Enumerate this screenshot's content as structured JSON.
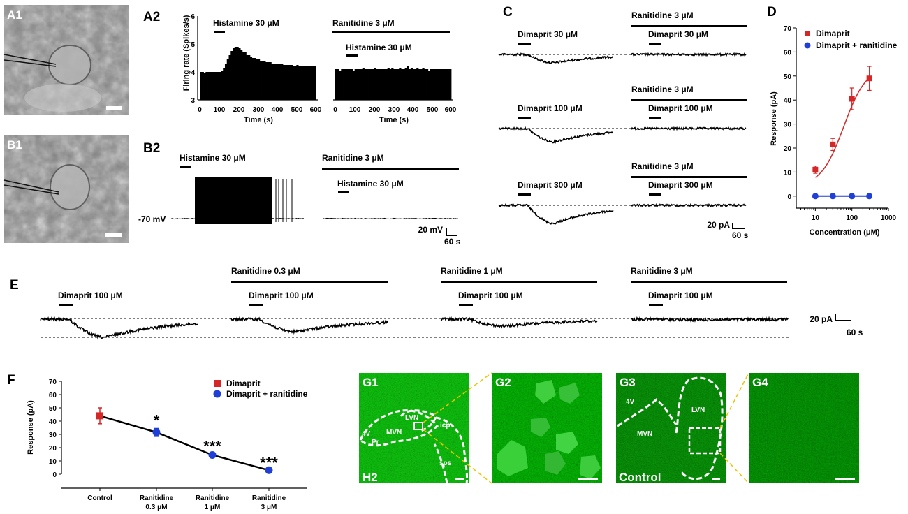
{
  "panels": {
    "A1": "A1",
    "A2": "A2",
    "B1": "B1",
    "B2": "B2",
    "C": "C",
    "D": "D",
    "E": "E",
    "F": "F",
    "G1": "G1",
    "G2": "G2",
    "G3": "G3",
    "G4": "G4"
  },
  "a2": {
    "ylabel": "Firing rate (Spikes/s)",
    "xlabel": "Time (s)",
    "yticks": [
      "3",
      "4",
      "5",
      "6"
    ],
    "xticks": [
      "0",
      "100",
      "200",
      "300",
      "400",
      "500",
      "600"
    ],
    "left_label": "Histamine 30 μM",
    "right_top_label": "Ranitidine 3 μM",
    "right_label": "Histamine 30 μM"
  },
  "b2": {
    "left_label": "Histamine 30 μM",
    "right_top_label": "Ranitidine 3 μM",
    "right_label": "Histamine 30 μM",
    "vm_label": "-70 mV",
    "scale_v": "20 mV",
    "scale_t": "60 s"
  },
  "c": {
    "rows": [
      {
        "agonist": "Dimaprit 30 μM",
        "antagonist": "Ranitidine 3 μM",
        "agonist2": "Dimaprit 30 μM"
      },
      {
        "agonist": "Dimaprit 100 μM",
        "antagonist": "Ranitidine 3 μM",
        "agonist2": "Dimaprit 100 μM"
      },
      {
        "agonist": "Dimaprit 300 μM",
        "antagonist": "Ranitidine 3 μM",
        "agonist2": "Dimaprit 300 μM"
      }
    ],
    "scale_a": "20 pA",
    "scale_t": "60 s"
  },
  "e": {
    "blocks": [
      {
        "top": "",
        "label": "Dimaprit 100 μM"
      },
      {
        "top": "Ranitidine 0.3 μM",
        "label": "Dimaprit 100 μM"
      },
      {
        "top": "Ranitidine 1 μM",
        "label": "Dimaprit 100 μM"
      },
      {
        "top": "Ranitidine 3 μM",
        "label": "Dimaprit 100 μM"
      }
    ],
    "scale_a": "20 pA",
    "scale_t": "60 s"
  },
  "g": {
    "g1_labels": [
      "4V",
      "Pr",
      "MVN",
      "LVN",
      "icp",
      "sps"
    ],
    "g1_corner": "H2",
    "g3_labels": [
      "4V",
      "MVN",
      "LVN"
    ],
    "g3_corner": "Control"
  },
  "colors": {
    "dimaprit": "#d62728",
    "ranitidine": "#1f3fd6",
    "micro_green": "#2f8a2f",
    "zoom_line": "#f2c200"
  },
  "chart_data": [
    {
      "panel": "A2",
      "type": "bar",
      "xlabel": "Time (s)",
      "ylabel": "Firing rate (Spikes/s)",
      "ylim": [
        3,
        6
      ],
      "xlim": [
        0,
        600
      ],
      "series": [
        {
          "name": "Histamine 30 μM",
          "bin_s": 10,
          "values": [
            4.0,
            4.0,
            3.95,
            4.0,
            4.0,
            4.0,
            4.0,
            4.0,
            4.0,
            4.0,
            4.0,
            4.05,
            4.15,
            4.3,
            4.45,
            4.6,
            4.75,
            4.85,
            4.9,
            4.9,
            4.85,
            4.8,
            4.7,
            4.7,
            4.6,
            4.6,
            4.55,
            4.5,
            4.5,
            4.45,
            4.45,
            4.4,
            4.4,
            4.4,
            4.35,
            4.35,
            4.35,
            4.3,
            4.3,
            4.3,
            4.3,
            4.3,
            4.3,
            4.25,
            4.25,
            4.25,
            4.25,
            4.25,
            4.2,
            4.2,
            4.25,
            4.2,
            4.2,
            4.2,
            4.2,
            4.2,
            4.2,
            4.2,
            4.2,
            4.2
          ]
        },
        {
          "name": "Ranitidine 3 μM + Histamine 30 μM",
          "bin_s": 10,
          "values": [
            4.1,
            4.1,
            4.05,
            4.1,
            4.1,
            4.1,
            4.1,
            4.1,
            4.1,
            4.05,
            4.1,
            4.1,
            4.1,
            4.1,
            4.15,
            4.1,
            4.1,
            4.1,
            4.1,
            4.1,
            4.15,
            4.1,
            4.1,
            4.1,
            4.1,
            4.1,
            4.1,
            4.15,
            4.1,
            4.15,
            4.1,
            4.1,
            4.1,
            4.15,
            4.1,
            4.1,
            4.15,
            4.2,
            4.1,
            4.15,
            4.1,
            4.1,
            4.15,
            4.1,
            4.1,
            4.15,
            4.1,
            4.1,
            4.05,
            4.1,
            4.1,
            4.1,
            4.1,
            4.1,
            4.1,
            4.1,
            4.1,
            4.1,
            4.1,
            4.1
          ]
        }
      ]
    },
    {
      "panel": "D",
      "type": "scatter",
      "xlabel": "Concentration (μM)",
      "ylabel": "Response (pA)",
      "xscale": "log",
      "xlim": [
        3,
        1000
      ],
      "ylim": [
        -5,
        70
      ],
      "yticks": [
        0,
        10,
        20,
        30,
        40,
        50,
        60,
        70
      ],
      "xticks": [
        10,
        100,
        1000
      ],
      "legend": "top-right",
      "series": [
        {
          "name": "Dimaprit",
          "color": "#d62728",
          "x": [
            10,
            30,
            100,
            300
          ],
          "y": [
            11,
            21.5,
            40.5,
            49
          ],
          "err": [
            1.5,
            2.5,
            4.5,
            5.0
          ]
        },
        {
          "name": "Dimaprit + ranitidine",
          "color": "#1f3fd6",
          "x": [
            10,
            30,
            100,
            300
          ],
          "y": [
            0,
            0,
            0,
            0
          ],
          "err": [
            0,
            0,
            0,
            0
          ]
        }
      ]
    },
    {
      "panel": "F",
      "type": "line",
      "ylabel": "Response (pA)",
      "ylim": [
        0,
        70
      ],
      "yticks": [
        0,
        10,
        20,
        30,
        40,
        50,
        60,
        70
      ],
      "categories": [
        "Control",
        "Ranitidine 0.3 μM",
        "Ranitidine 1 μM",
        "Ranitidine 3 μM"
      ],
      "legend": "top-right",
      "series": [
        {
          "name": "Dimaprit",
          "color": "#d62728",
          "values": [
            44,
            null,
            null,
            null
          ],
          "err": [
            6,
            null,
            null,
            null
          ]
        },
        {
          "name": "Dimaprit + ranitidine",
          "color": "#1f3fd6",
          "values": [
            null,
            31.5,
            14.5,
            3
          ],
          "err": [
            null,
            3,
            1.5,
            0.8
          ]
        }
      ],
      "significance": [
        "",
        "*",
        "***",
        "***"
      ]
    }
  ]
}
